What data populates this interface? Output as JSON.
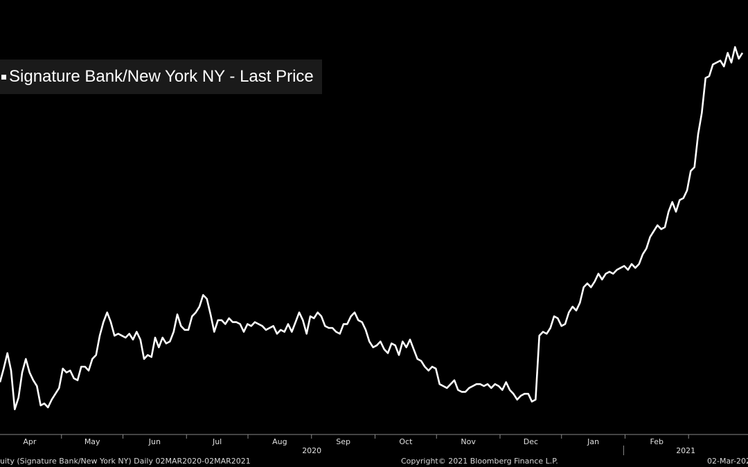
{
  "chart_data": {
    "type": "line",
    "title": "",
    "xlabel": "",
    "ylabel": "",
    "grid": false,
    "legend_position": "top-left",
    "line_color": "#ffffff",
    "background": "#000000",
    "series": [
      {
        "name": "Signature Bank/New York NY - Last Price",
        "values": [
          68.5,
          72.0,
          76.0,
          71.5,
          61.5,
          64.5,
          71.0,
          74.5,
          71.0,
          69.0,
          67.5,
          62.5,
          63.0,
          62.0,
          64.0,
          65.5,
          67.0,
          72.0,
          71.0,
          71.5,
          69.5,
          69.0,
          72.5,
          72.5,
          71.5,
          74.5,
          75.5,
          80.5,
          84.0,
          86.5,
          84.0,
          80.5,
          81.0,
          80.5,
          80.0,
          81.0,
          79.5,
          81.5,
          79.5,
          74.5,
          75.5,
          75.0,
          80.0,
          77.5,
          80.0,
          78.5,
          79.0,
          81.5,
          86.0,
          83.0,
          82.0,
          82.0,
          85.5,
          86.5,
          88.0,
          91.0,
          90.0,
          86.0,
          81.5,
          84.5,
          84.5,
          83.5,
          85.0,
          84.0,
          84.0,
          83.5,
          81.5,
          83.5,
          83.0,
          84.0,
          83.5,
          83.0,
          82.0,
          82.5,
          83.0,
          81.0,
          82.0,
          81.5,
          83.5,
          81.5,
          84.0,
          86.5,
          84.5,
          81.0,
          85.5,
          85.0,
          86.5,
          85.5,
          83.0,
          82.5,
          82.5,
          81.5,
          81.0,
          83.5,
          83.5,
          85.5,
          86.5,
          84.5,
          84.0,
          82.0,
          79.0,
          77.5,
          78.0,
          79.0,
          77.0,
          76.0,
          78.5,
          78.0,
          75.5,
          79.0,
          77.5,
          79.5,
          77.0,
          74.5,
          74.0,
          72.5,
          71.5,
          72.5,
          72.0,
          68.0,
          67.5,
          67.0,
          68.0,
          69.0,
          66.5,
          66.0,
          66.0,
          67.0,
          67.5,
          68.0,
          68.0,
          67.5,
          68.0,
          67.0,
          68.0,
          67.5,
          66.5,
          68.5,
          66.5,
          65.5,
          64.0,
          65.0,
          65.5,
          65.5,
          63.5,
          64.0,
          80.5,
          81.5,
          81.0,
          82.5,
          85.5,
          85.0,
          83.0,
          83.5,
          86.5,
          88.0,
          87.0,
          89.0,
          93.0,
          94.0,
          93.0,
          94.5,
          96.5,
          95.0,
          96.5,
          97.0,
          96.5,
          97.5,
          98.0,
          98.5,
          97.5,
          99.0,
          98.0,
          99.0,
          101.5,
          103.0,
          106.0,
          107.5,
          109.0,
          108.0,
          108.5,
          112.5,
          115.0,
          112.5,
          115.5,
          116.0,
          118.0,
          123.0,
          124.0,
          132.5,
          138.0,
          147.0,
          147.5,
          150.5,
          151.0,
          151.5,
          150.0,
          153.5,
          151.0,
          155.0,
          152.0,
          153.5
        ]
      }
    ],
    "x_date_range": [
      "2020-03-02",
      "2021-03-02"
    ],
    "ylim": [
      60,
      160
    ],
    "month_ticks": [
      "Apr",
      "May",
      "Jun",
      "Jul",
      "Aug",
      "Sep",
      "Oct",
      "Nov",
      "Dec",
      "Jan",
      "Feb"
    ],
    "year_labels": [
      "2020",
      "2021"
    ]
  },
  "footer": {
    "left": "uity (Signature Bank/New York NY)  Daily 02MAR2020-02MAR2021",
    "center": "Copyright© 2021 Bloomberg Finance L.P.",
    "right": "02-Mar-202"
  }
}
